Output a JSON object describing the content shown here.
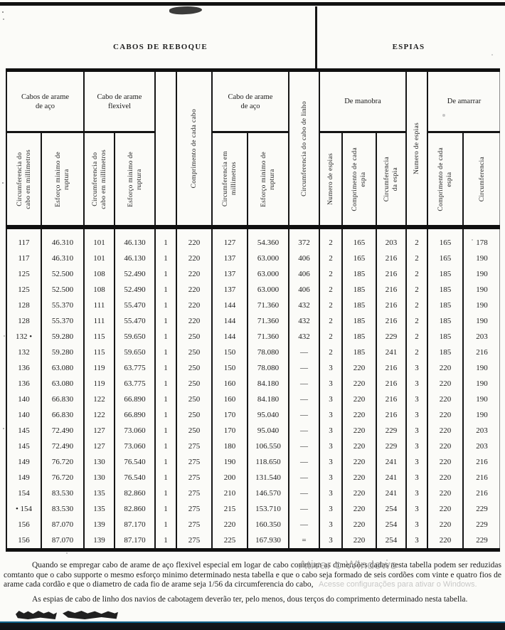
{
  "table": {
    "caption_left": "CABOS DE REBOQUE",
    "caption_right": "ESPIAS",
    "groups": {
      "aco": "Cabos de arame\nde aço",
      "flexivel": "Cabo de arame\nflexivel",
      "aco2": "Cabo de arame\nde aço",
      "manobra": "De  manobra",
      "amarrar": "De amarrar"
    },
    "columns": [
      "Circumferencia do\ncabo em millimetros",
      "Esforço minimo de\nruptura",
      "Circumferencia do\ncabo em millimetros",
      "Esforço minimo de\nruptura",
      "",
      "Comprimento de cada cabo",
      "Circumferencia em\nmillimetros",
      "Esforço minimo de\nruptura",
      "Circumferencia do cabo de linho",
      "Numero de espias",
      "Comprimento de cada\nespia",
      "Circumferencia\nda espia",
      "Numero de espias",
      "Comprimento de cada\nespia",
      "Circumferencia"
    ],
    "rows": [
      [
        "117",
        "46.310",
        "101",
        "46.130",
        "1",
        "220",
        "127",
        "54.360",
        "372",
        "2",
        "165",
        "203",
        "2",
        "165",
        "178"
      ],
      [
        "117",
        "46.310",
        "101",
        "46.130",
        "1",
        "220",
        "137",
        "63.000",
        "406",
        "2",
        "165",
        "216",
        "2",
        "165",
        "190"
      ],
      [
        "125",
        "52.500",
        "108",
        "52.490",
        "1",
        "220",
        "137",
        "63.000",
        "406",
        "2",
        "185",
        "216",
        "2",
        "185",
        "190"
      ],
      [
        "125",
        "52.500",
        "108",
        "52.490",
        "1",
        "220",
        "137",
        "63.000",
        "406",
        "2",
        "185",
        "216",
        "2",
        "185",
        "190"
      ],
      [
        "128",
        "55.370",
        "111",
        "55.470",
        "1",
        "220",
        "144",
        "71.360",
        "432",
        "2",
        "185",
        "216",
        "2",
        "185",
        "190"
      ],
      [
        "128",
        "55.370",
        "111",
        "55.470",
        "1",
        "220",
        "144",
        "71.360",
        "432",
        "2",
        "185",
        "216",
        "2",
        "185",
        "190"
      ],
      [
        "132 •",
        "59.280",
        "115",
        "59.650",
        "1",
        "250",
        "144",
        "71.360",
        "432",
        "2",
        "185",
        "229",
        "2",
        "185",
        "203"
      ],
      [
        "132",
        "59.280",
        "115",
        "59.650",
        "1",
        "250",
        "150",
        "78.080",
        "—",
        "2",
        "185",
        "241",
        "2",
        "185",
        "216"
      ],
      [
        "136",
        "63.080",
        "119",
        "63.775",
        "1",
        "250",
        "150",
        "78.080",
        "—",
        "3",
        "220",
        "216",
        "3",
        "220",
        "190"
      ],
      [
        "136",
        "63.080",
        "119",
        "63.775",
        "1",
        "250",
        "160",
        "84.180",
        "—",
        "3",
        "220",
        "216",
        "3",
        "220",
        "190"
      ],
      [
        "140",
        "66.830",
        "122",
        "66.890",
        "1",
        "250",
        "160",
        "84.180",
        "—",
        "3",
        "220",
        "216",
        "3",
        "220",
        "190"
      ],
      [
        "140",
        "66.830",
        "122",
        "66.890",
        "1",
        "250",
        "170",
        "95.040",
        "—",
        "3",
        "220",
        "216",
        "3",
        "220",
        "190"
      ],
      [
        "145",
        "72.490",
        "127",
        "73.060",
        "1",
        "250",
        "170",
        "95.040",
        "—",
        "3",
        "220",
        "229",
        "3",
        "220",
        "203"
      ],
      [
        "145",
        "72.490",
        "127",
        "73.060",
        "1",
        "275",
        "180",
        "106.550",
        "—",
        "3",
        "220",
        "229",
        "3",
        "220",
        "203"
      ],
      [
        "149",
        "76.720",
        "130",
        "76.540",
        "1",
        "275",
        "190",
        "118.650",
        "—",
        "3",
        "220",
        "241",
        "3",
        "220",
        "216"
      ],
      [
        "149",
        "76.720",
        "130",
        "76.540",
        "1",
        "275",
        "200",
        "131.540",
        "—",
        "3",
        "220",
        "241",
        "3",
        "220",
        "216"
      ],
      [
        "154",
        "83.530",
        "135",
        "82.860",
        "1",
        "275",
        "210",
        "146.570",
        "—",
        "3",
        "220",
        "241",
        "3",
        "220",
        "216"
      ],
      [
        "• 154",
        "83.530",
        "135",
        "82.860",
        "1",
        "275",
        "215",
        "153.710",
        "—",
        "3",
        "220",
        "254",
        "3",
        "220",
        "229"
      ],
      [
        "156",
        "87.070",
        "139",
        "87.170",
        "1",
        "275",
        "220",
        "160.350",
        "—",
        "3",
        "220",
        "254",
        "3",
        "220",
        "229"
      ],
      [
        "156",
        "87.070",
        "139",
        "87.170",
        "1",
        "275",
        "225",
        "167.930",
        "=",
        "3",
        "220",
        "254",
        "3",
        "220",
        "229"
      ]
    ]
  },
  "notes": {
    "p1": "Quando se empregar cabo de arame de aço flexivel especial em logar de cabo commum as dimensões dadas nesta tabella podem ser reduzidas comtanto que o cabo supporte o mesmo esforço  minimo  determinado  nesta  tabella  e  que  o  cabo seja formado de seis cordões com vinte e quatro fios de arame cada cordão e que o diametro de cada fio de arame seja 1/56 da circumferencia do cabo,",
    "p2": "As espias de cabo de linho dos navios de cabotagem deverão ter, pelo menos, dous terços do  comprimento determinado nesta tabella."
  },
  "watermark": {
    "line1": "Ativar o Windows",
    "line2": "Acesse configurações para ativar o Windows."
  }
}
